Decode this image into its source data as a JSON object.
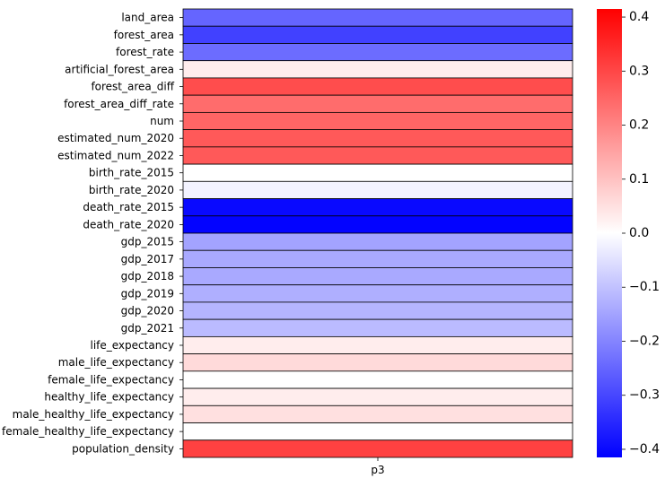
{
  "chart_data": {
    "type": "heatmap",
    "title": "",
    "xlabel": "",
    "ylabel": "",
    "columns": [
      "p3"
    ],
    "rows": [
      "land_area",
      "forest_area",
      "forest_rate",
      "artificial_forest_area",
      "forest_area_diff",
      "forest_area_diff_rate",
      "num",
      "estimated_num_2020",
      "estimated_num_2022",
      "birth_rate_2015",
      "birth_rate_2020",
      "death_rate_2015",
      "death_rate_2020",
      "gdp_2015",
      "gdp_2017",
      "gdp_2018",
      "gdp_2019",
      "gdp_2020",
      "gdp_2021",
      "life_expectancy",
      "male_life_expectancy",
      "female_life_expectancy",
      "healthy_life_expectancy",
      "male_healthy_life_expectancy",
      "female_healthy_life_expectancy",
      "population_density"
    ],
    "values": [
      -0.25,
      -0.31,
      -0.24,
      0.03,
      0.29,
      0.24,
      0.25,
      0.27,
      0.27,
      0.0,
      -0.02,
      -0.4,
      -0.41,
      -0.15,
      -0.14,
      -0.14,
      -0.13,
      -0.12,
      -0.11,
      0.03,
      0.06,
      0.0,
      0.03,
      0.05,
      0.0,
      0.31
    ],
    "colormap": "bwr",
    "colorbar": {
      "range": [
        -0.415,
        0.415
      ],
      "ticks": [
        "0.4",
        "0.3",
        "0.2",
        "0.1",
        "0.0",
        "−0.1",
        "−0.2",
        "−0.3",
        "−0.4"
      ],
      "tick_values": [
        0.4,
        0.3,
        0.2,
        0.1,
        0.0,
        -0.1,
        -0.2,
        -0.3,
        -0.4
      ]
    },
    "cell_borders": "black",
    "grid": false,
    "legend": "colorbar-right"
  }
}
